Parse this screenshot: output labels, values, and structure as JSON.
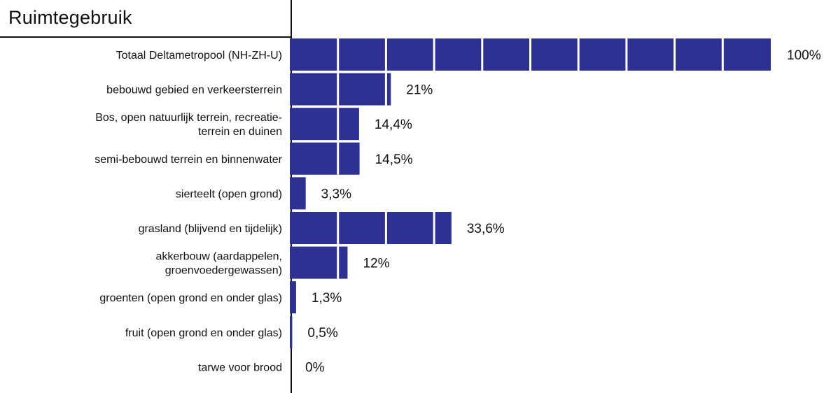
{
  "chart_data": {
    "type": "bar",
    "orientation": "horizontal",
    "title": "Ruimtegebruik",
    "xlabel": "",
    "ylabel": "",
    "xlim": [
      0,
      100
    ],
    "bar_color": "#2E3192",
    "segment_step": 10,
    "grid": false,
    "categories": [
      [
        "Totaal Deltametropool (NH-ZH-U)"
      ],
      [
        "bebouwd gebied en verkeersterrein"
      ],
      [
        "Bos, open natuurlijk terrein, recreatie-",
        "terrein en duinen"
      ],
      [
        "semi-bebouwd terrein en binnenwater"
      ],
      [
        "sierteelt (open grond)"
      ],
      [
        "grasland (blijvend en tijdelijk)"
      ],
      [
        "akkerbouw (aardappelen,",
        "groenvoedergewassen)"
      ],
      [
        "groenten (open grond en onder glas)"
      ],
      [
        "fruit (open grond en onder glas)"
      ],
      [
        "tarwe voor brood"
      ]
    ],
    "values": [
      100,
      21,
      14.4,
      14.5,
      3.3,
      33.6,
      12,
      1.3,
      0.5,
      0
    ],
    "value_labels": [
      "100%",
      "21%",
      "14,4%",
      "14,5%",
      "3,3%",
      "33,6%",
      "12%",
      "1,3%",
      "0,5%",
      "0%"
    ]
  }
}
